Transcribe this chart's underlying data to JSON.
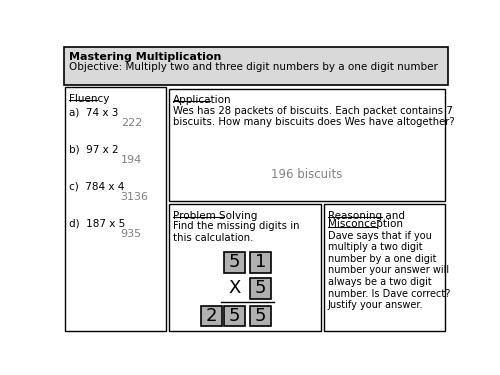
{
  "title_bold": "Mastering Multiplication",
  "title_obj": "Objective: Multiply two and three digit numbers by a one digit number",
  "header_bg": "#d9d9d9",
  "border_color": "#000000",
  "fluency_label": "Fluency",
  "fluency_items": [
    {
      "label": "a)  74 x 3",
      "answer": "222"
    },
    {
      "label": "b)  97 x 2",
      "answer": "194"
    },
    {
      "label": "c)  784 x 4",
      "answer": "3136"
    },
    {
      "label": "d)  187 x 5",
      "answer": "935"
    }
  ],
  "application_label": "Application",
  "application_text": "Wes has 28 packets of biscuits. Each packet contains 7\nbiscuits. How many biscuits does Wes have altogether?",
  "application_answer": "196 biscuits",
  "problem_label": "Problem Solving",
  "problem_text": "Find the missing digits in\nthis calculation.",
  "reasoning_label_line1": "Reasoning and",
  "reasoning_label_line2": "Misconception",
  "reasoning_text": "Dave says that if you\nmultiply a two digit\nnumber by a one digit\nnumber your answer will\nalways be a two digit\nnumber. Is Dave correct?\nJustify your answer.",
  "answer_color": "#808080",
  "cell_bg": "#b0b0b0",
  "font_family": "DejaVu Sans"
}
